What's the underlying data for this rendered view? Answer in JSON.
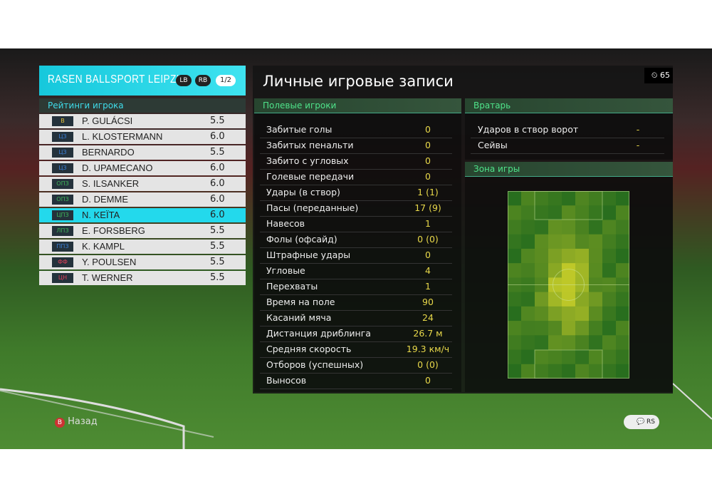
{
  "header": {
    "team": "RASEN BALLSPORT LEIPZIG",
    "lb": "LB",
    "rb": "RB",
    "page": "1/2",
    "title": "Личные игровые записи",
    "timer": "65"
  },
  "players": {
    "title": "Рейтинги игрока",
    "rows": [
      {
        "pos": "В",
        "name": "P. GULÁCSI",
        "rating": "5.5"
      },
      {
        "pos": "ЦЗ",
        "name": "L. KLOSTERMANN",
        "rating": "6.0"
      },
      {
        "pos": "ЦЗ",
        "name": "BERNARDO",
        "rating": "5.5"
      },
      {
        "pos": "ЦЗ",
        "name": "D. UPAMECANO",
        "rating": "6.0"
      },
      {
        "pos": "ОПЗ",
        "name": "S. ILSANKER",
        "rating": "6.0"
      },
      {
        "pos": "ОПЗ",
        "name": "D. DEMME",
        "rating": "6.0"
      },
      {
        "pos": "ЦПЗ",
        "name": "N. KEÏTA",
        "rating": "6.0"
      },
      {
        "pos": "ЛПЗ",
        "name": "E. FORSBERG",
        "rating": "5.5"
      },
      {
        "pos": "ППЗ",
        "name": "K. KAMPL",
        "rating": "5.5"
      },
      {
        "pos": "ФФ",
        "name": "Y. POULSEN",
        "rating": "5.5"
      },
      {
        "pos": "ЦН",
        "name": "T. WERNER",
        "rating": "5.5"
      }
    ]
  },
  "field_stats": {
    "title": "Полевые игроки",
    "rows": [
      [
        "Забитые голы",
        "0"
      ],
      [
        "Забитых пенальти",
        "0"
      ],
      [
        "Забито с угловых",
        "0"
      ],
      [
        "Голевые передачи",
        "0"
      ],
      [
        "Удары (в створ)",
        "1 (1)"
      ],
      [
        "Пасы (переданные)",
        "17 (9)"
      ],
      [
        "Навесов",
        "1"
      ],
      [
        "Фолы (офсайд)",
        "0 (0)"
      ],
      [
        "Штрафные удары",
        "0"
      ],
      [
        "Угловые",
        "4"
      ],
      [
        "Перехваты",
        "1"
      ],
      [
        "Время на поле",
        "90"
      ],
      [
        "Касаний мяча",
        "24"
      ],
      [
        "Дистанция дриблинга",
        "26.7 м"
      ],
      [
        "Средняя скорость",
        "19.3 км/ч"
      ],
      [
        "Отборов (успешных)",
        "0 (0)"
      ],
      [
        "Выносов",
        "0"
      ]
    ]
  },
  "goalkeeper": {
    "title": "Вратарь",
    "rows": [
      [
        "Ударов в створ ворот",
        "-"
      ],
      [
        "Сейвы",
        "-"
      ]
    ]
  },
  "zone": {
    "title": "Зона игры"
  },
  "footer": {
    "back_button": "B",
    "back": "Назад",
    "rs": "RS"
  }
}
